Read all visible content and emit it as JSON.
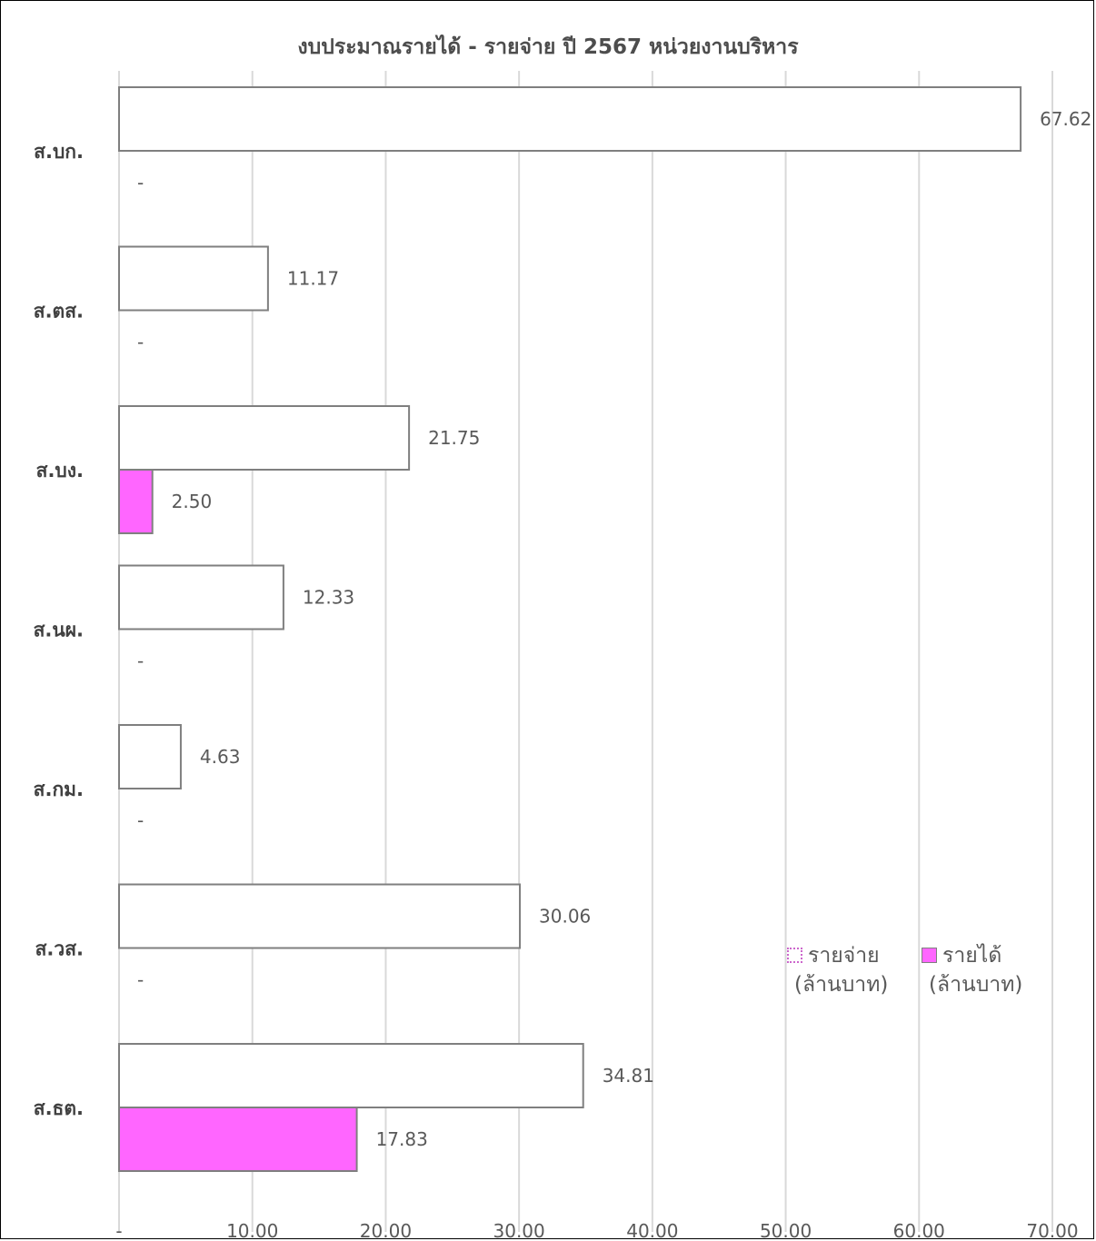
{
  "chart_data": {
    "type": "bar",
    "orientation": "horizontal",
    "title": "งบประมาณรายได้  - รายจ่าย  ปี 2567  หน่วยงานบริหาร",
    "categories": [
      "ส.บก.",
      "ส.ตส.",
      "ส.บง.",
      "ส.นผ.",
      "ส.กม.",
      "ส.วส.",
      "ส.ธต."
    ],
    "series": [
      {
        "name": "รายจ่าย (ล้านบาท)",
        "name_line1": "รายจ่าย",
        "name_line2": "(ล้านบาท)",
        "color": "#ffffff",
        "border": "#7f7f7f",
        "values": [
          67.62,
          11.17,
          21.75,
          12.33,
          4.63,
          30.06,
          34.81
        ],
        "labels": [
          "67.62",
          "11.17",
          "21.75",
          "12.33",
          "4.63",
          "30.06",
          "34.81"
        ]
      },
      {
        "name": "รายได้ (ล้านบาท)",
        "name_line1": "รายได้",
        "name_line2": "(ล้านบาท)",
        "color": "#ff66ff",
        "border": "#7f7f7f",
        "values": [
          0,
          0,
          2.5,
          0,
          0,
          0,
          17.83
        ],
        "labels": [
          "-",
          "-",
          "2.50",
          "-",
          "-",
          "-",
          "17.83"
        ]
      }
    ],
    "xlim": [
      0,
      70
    ],
    "xticks": [
      0,
      10,
      20,
      30,
      40,
      50,
      60,
      70
    ],
    "xtick_labels": [
      "-",
      "10.00",
      "20.00",
      "30.00",
      "40.00",
      "50.00",
      "60.00",
      "70.00"
    ],
    "grid": "vertical",
    "legend_position": "bottom-right"
  },
  "colors": {
    "text": "#595959",
    "grid": "#d9d9d9",
    "income": "#ff66ff"
  }
}
